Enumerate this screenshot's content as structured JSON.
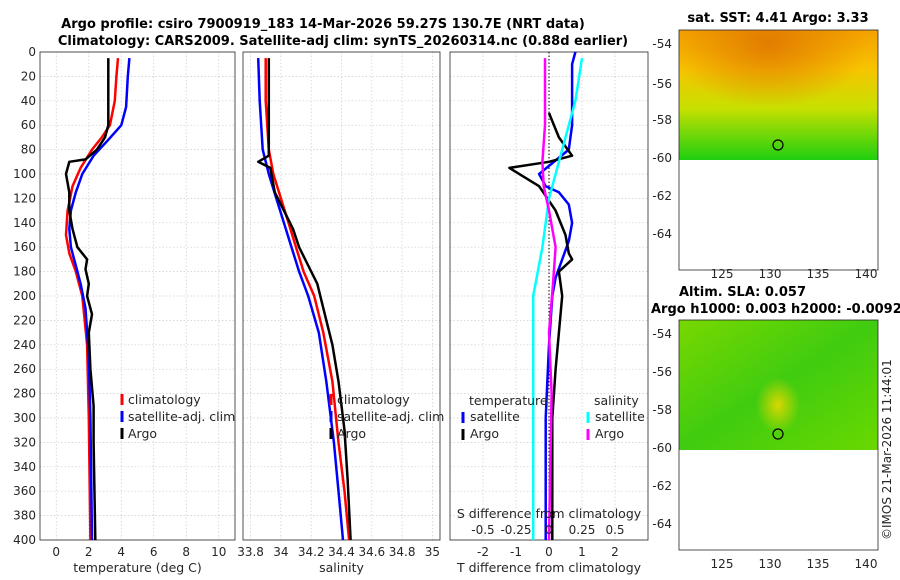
{
  "title": {
    "line1": "Argo profile: csiro 7900919_183 14-Mar-2026 59.27S 130.7E (NRT data)",
    "line2": "Climatology: CARS2009. Satellite-adj clim: synTS_20260314.nc (0.88d earlier)"
  },
  "colors": {
    "clim": "#ff0000",
    "sat": "#0000ff",
    "argo": "#000000",
    "cyan": "#00ffff",
    "magenta": "#ff00ff"
  },
  "depth_ticks": [
    "0",
    "20",
    "40",
    "60",
    "80",
    "100",
    "120",
    "140",
    "160",
    "180",
    "200",
    "220",
    "240",
    "260",
    "280",
    "300",
    "320",
    "340",
    "360",
    "380",
    "400"
  ],
  "chart_data": [
    {
      "id": "temperature",
      "type": "line",
      "xlabel": "temperature (deg C)",
      "xlim": [
        -1,
        11
      ],
      "ylim": [
        0,
        400
      ],
      "y_reversed": true,
      "xticks": [
        0,
        2,
        4,
        6,
        8,
        10
      ],
      "xtick_labels": [
        "0",
        "2",
        "4",
        "6",
        "8",
        "10"
      ],
      "legend": [
        "climatology",
        "satellite-adj. clim",
        "Argo"
      ],
      "series": [
        {
          "name": "climatology",
          "color": "#ff0000",
          "points": [
            [
              3.8,
              5
            ],
            [
              3.7,
              20
            ],
            [
              3.6,
              40
            ],
            [
              3.3,
              60
            ],
            [
              2.8,
              70
            ],
            [
              2.2,
              80
            ],
            [
              1.5,
              95
            ],
            [
              1.0,
              110
            ],
            [
              0.7,
              130
            ],
            [
              0.6,
              150
            ],
            [
              0.8,
              165
            ],
            [
              1.2,
              180
            ],
            [
              1.6,
              200
            ],
            [
              1.9,
              240
            ],
            [
              2.0,
              300
            ],
            [
              2.1,
              400
            ]
          ]
        },
        {
          "name": "satellite-adj. clim",
          "color": "#0000ff",
          "points": [
            [
              4.5,
              5
            ],
            [
              4.4,
              20
            ],
            [
              4.3,
              45
            ],
            [
              4.0,
              60
            ],
            [
              3.2,
              72
            ],
            [
              2.3,
              85
            ],
            [
              1.6,
              100
            ],
            [
              1.2,
              115
            ],
            [
              0.9,
              130
            ],
            [
              0.8,
              145
            ],
            [
              0.9,
              160
            ],
            [
              1.2,
              175
            ],
            [
              1.5,
              190
            ],
            [
              1.8,
              210
            ],
            [
              2.0,
              250
            ],
            [
              2.1,
              300
            ],
            [
              2.2,
              400
            ]
          ]
        },
        {
          "name": "Argo",
          "color": "#000000",
          "points": [
            [
              3.2,
              5
            ],
            [
              3.2,
              60
            ],
            [
              3.0,
              70
            ],
            [
              2.5,
              80
            ],
            [
              1.8,
              88
            ],
            [
              0.8,
              90
            ],
            [
              0.6,
              100
            ],
            [
              0.8,
              115
            ],
            [
              0.8,
              130
            ],
            [
              1.0,
              145
            ],
            [
              1.3,
              160
            ],
            [
              1.9,
              170
            ],
            [
              1.8,
              178
            ],
            [
              2.0,
              190
            ],
            [
              1.9,
              200
            ],
            [
              2.2,
              215
            ],
            [
              2.0,
              230
            ],
            [
              2.1,
              260
            ],
            [
              2.3,
              290
            ],
            [
              2.3,
              320
            ],
            [
              2.4,
              400
            ]
          ]
        }
      ]
    },
    {
      "id": "salinity",
      "type": "line",
      "xlabel": "salinity",
      "xlim": [
        33.75,
        35.05
      ],
      "ylim": [
        0,
        400
      ],
      "y_reversed": true,
      "xticks": [
        33.8,
        34.0,
        34.2,
        34.4,
        34.6,
        34.8,
        35.0
      ],
      "xtick_labels": [
        "33.8",
        "34",
        "34.2",
        "34.4",
        "34.6",
        "34.8",
        "35"
      ],
      "legend": [
        "climatology",
        "satellite-adj. clim",
        "Argo"
      ],
      "series": [
        {
          "name": "climatology",
          "color": "#ff0000",
          "points": [
            [
              33.9,
              5
            ],
            [
              33.9,
              40
            ],
            [
              33.92,
              80
            ],
            [
              33.95,
              100
            ],
            [
              34.0,
              120
            ],
            [
              34.05,
              140
            ],
            [
              34.1,
              160
            ],
            [
              34.15,
              180
            ],
            [
              34.22,
              200
            ],
            [
              34.28,
              230
            ],
            [
              34.34,
              270
            ],
            [
              34.38,
              320
            ],
            [
              34.42,
              360
            ],
            [
              34.45,
              400
            ]
          ]
        },
        {
          "name": "satellite-adj. clim",
          "color": "#0000ff",
          "points": [
            [
              33.85,
              5
            ],
            [
              33.86,
              40
            ],
            [
              33.88,
              80
            ],
            [
              33.92,
              100
            ],
            [
              33.97,
              120
            ],
            [
              34.02,
              140
            ],
            [
              34.07,
              160
            ],
            [
              34.12,
              180
            ],
            [
              34.18,
              200
            ],
            [
              34.25,
              230
            ],
            [
              34.3,
              270
            ],
            [
              34.35,
              320
            ],
            [
              34.38,
              360
            ],
            [
              34.41,
              400
            ]
          ]
        },
        {
          "name": "Argo",
          "color": "#000000",
          "points": [
            [
              33.92,
              5
            ],
            [
              33.92,
              50
            ],
            [
              33.92,
              85
            ],
            [
              33.85,
              90
            ],
            [
              33.93,
              95
            ],
            [
              33.96,
              115
            ],
            [
              34.02,
              130
            ],
            [
              34.08,
              145
            ],
            [
              34.12,
              160
            ],
            [
              34.18,
              175
            ],
            [
              34.24,
              190
            ],
            [
              34.28,
              210
            ],
            [
              34.34,
              240
            ],
            [
              34.38,
              270
            ],
            [
              34.42,
              310
            ],
            [
              34.44,
              350
            ],
            [
              34.46,
              400
            ]
          ]
        }
      ]
    },
    {
      "id": "difference",
      "type": "line",
      "xlabel": "T difference from climatology",
      "xlabel_top": "S difference from climatology",
      "xlim": [
        -3,
        3
      ],
      "ylim": [
        0,
        400
      ],
      "y_reversed": true,
      "xticks": [
        -2,
        -1,
        0,
        1,
        2
      ],
      "xtick_labels": [
        "-2",
        "-1",
        "0",
        "1",
        "2"
      ],
      "s_xlim": [
        -0.75,
        0.75
      ],
      "s_xticks": [
        -0.5,
        -0.25,
        0,
        0.25,
        0.5
      ],
      "s_xtick_labels": [
        "-0.5",
        "-0.25",
        "0",
        "0.25",
        "0.5"
      ],
      "legend_temperature_title": "temperature",
      "legend_temperature": [
        "satellite",
        "Argo"
      ],
      "legend_salinity_title": "salinity",
      "legend_salinity": [
        "satellite",
        "Argo"
      ],
      "series": [
        {
          "name": "temperature satellite",
          "color": "#0000ff",
          "points": [
            [
              0.8,
              0
            ],
            [
              0.7,
              10
            ],
            [
              0.7,
              60
            ],
            [
              0.6,
              80
            ],
            [
              -0.3,
              100
            ],
            [
              -0.1,
              110
            ],
            [
              0.3,
              115
            ],
            [
              0.6,
              125
            ],
            [
              0.7,
              140
            ],
            [
              0.6,
              155
            ],
            [
              0.4,
              170
            ],
            [
              0.2,
              185
            ],
            [
              0.1,
              200
            ],
            [
              0.0,
              240
            ],
            [
              -0.1,
              300
            ],
            [
              -0.1,
              400
            ]
          ]
        },
        {
          "name": "temperature Argo",
          "color": "#000000",
          "points": [
            [
              0.0,
              50
            ],
            [
              0.3,
              70
            ],
            [
              0.7,
              85
            ],
            [
              0.0,
              90
            ],
            [
              -1.2,
              95
            ],
            [
              -0.3,
              110
            ],
            [
              0.2,
              130
            ],
            [
              0.5,
              150
            ],
            [
              0.6,
              165
            ],
            [
              0.7,
              170
            ],
            [
              0.3,
              180
            ],
            [
              0.4,
              200
            ],
            [
              0.3,
              230
            ],
            [
              0.2,
              260
            ],
            [
              0.1,
              300
            ],
            [
              0.1,
              400
            ]
          ]
        },
        {
          "name": "salinity satellite",
          "color": "#00ffff",
          "points": [
            [
              0.25,
              5
            ],
            [
              0.2,
              40
            ],
            [
              0.1,
              80
            ],
            [
              0.05,
              100
            ],
            [
              0.0,
              120
            ],
            [
              -0.05,
              160
            ],
            [
              -0.12,
              200
            ],
            [
              -0.12,
              260
            ],
            [
              -0.12,
              400
            ]
          ]
        },
        {
          "name": "salinity Argo",
          "color": "#ff00ff",
          "points": [
            [
              -0.03,
              5
            ],
            [
              -0.03,
              60
            ],
            [
              -0.05,
              90
            ],
            [
              -0.04,
              110
            ],
            [
              0.0,
              130
            ],
            [
              0.05,
              160
            ],
            [
              0.03,
              190
            ],
            [
              0.0,
              230
            ],
            [
              0.02,
              280
            ],
            [
              0.0,
              400
            ]
          ]
        }
      ]
    }
  ],
  "maps": [
    {
      "id": "sst",
      "title": "sat. SST: 4.41 Argo: 3.33",
      "xticks": [
        "125",
        "130",
        "135",
        "140"
      ],
      "yticks": [
        "-54",
        "-56",
        "-58",
        "-60",
        "-62",
        "-64"
      ],
      "marker": {
        "lon": 130.7,
        "lat": -59.27
      }
    },
    {
      "id": "sla",
      "title_line1": "Altim. SLA: 0.057",
      "title_line2": "Argo h1000: 0.003 h2000: -0.0092",
      "xticks": [
        "125",
        "130",
        "135",
        "140"
      ],
      "yticks": [
        "-54",
        "-56",
        "-58",
        "-60",
        "-62",
        "-64"
      ],
      "marker": {
        "lon": 130.7,
        "lat": -59.27
      }
    }
  ],
  "copyright": "©IMOS 21-Mar-2026 11:44:01"
}
